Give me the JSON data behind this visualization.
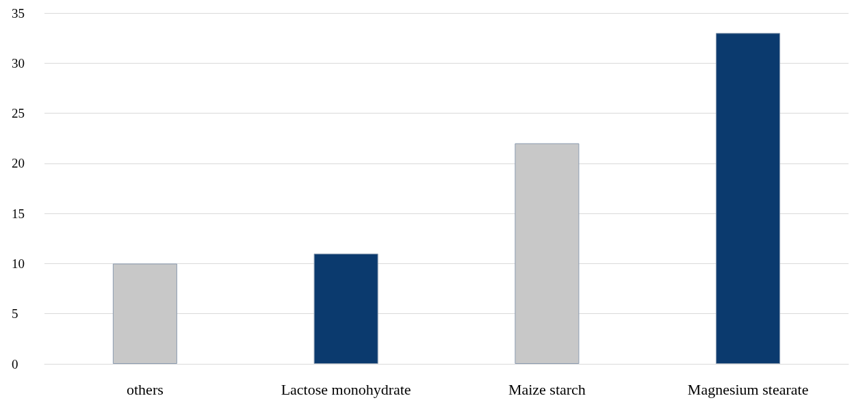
{
  "chart_data": {
    "type": "bar",
    "categories": [
      "others",
      "Lactose monohydrate",
      "Maize starch",
      "Magnesium stearate"
    ],
    "values": [
      10,
      11,
      22,
      33
    ],
    "colors": [
      "#c8c8c8",
      "#0b3a6e",
      "#c8c8c8",
      "#0b3a6e"
    ],
    "ylim": [
      0,
      35
    ],
    "yticks": [
      0,
      5,
      10,
      15,
      20,
      25,
      30,
      35
    ],
    "grid": "y"
  }
}
